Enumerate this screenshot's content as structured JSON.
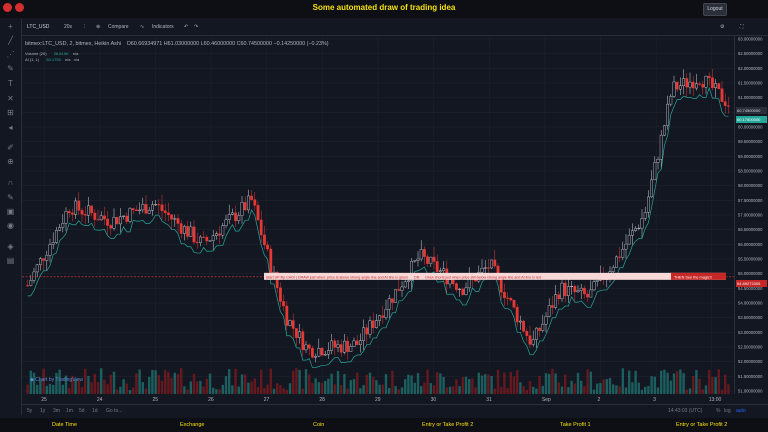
{
  "header": {
    "title": "Some automated draw of trading idea",
    "logout_label": "Logout"
  },
  "toolbar": {
    "symbol": "LTC_USD",
    "interval": "20s",
    "compare": "Compare",
    "indicators": "Indicators"
  },
  "legend": {
    "series": "bitmex:LTC_USD, 2, bitmex, Heikin Ashi",
    "ohlc": "O60.66934971  H61.03000000  L60.46000000  C60.74500000  −0.14250000 (−0.23%)",
    "volume": "Volume (20)",
    "volume_value": "26.819K",
    "volume_na": "n/a",
    "ai_label": "AI (1, 1)",
    "ai_value": "60.1750",
    "ai_na1": "n/a",
    "ai_na2": "n/a"
  },
  "chart_data": {
    "type": "candlestick",
    "x_labels": [
      "25",
      "24",
      "25",
      "26",
      "27",
      "28",
      "29",
      "30",
      "31",
      "Sep",
      "2",
      "3",
      "13:00"
    ],
    "y_ticks": [
      "63.00000000",
      "62.50000000",
      "62.00000000",
      "61.50000000",
      "61.00000000",
      "60.50000000",
      "60.00000000",
      "59.50000000",
      "59.00000000",
      "58.50000000",
      "58.00000000",
      "57.50000000",
      "57.00000000",
      "56.50000000",
      "56.00000000",
      "55.50000000",
      "55.00000000",
      "54.50000000",
      "54.00000000",
      "53.50000000",
      "53.00000000",
      "52.50000000",
      "52.00000000",
      "51.50000000",
      "51.00000000"
    ],
    "ylim": [
      50.9,
      63.1
    ],
    "current_price": "60.74500000",
    "ai_price": "60.17500000",
    "line_price": "54.89272305",
    "annotation_text": "Start UP flip CHOI  |  DRAW just when: price is above strong angle line and AI line is green       DN       Draw shorts just when price still below strong angle line and AI line is red",
    "annotation_tag": "THEN See the magic!!"
  },
  "watermark": "Chart by TradingView",
  "bottom": {
    "ranges": [
      "5y",
      "1y",
      "3m",
      "1m",
      "5d",
      "1d",
      "Go to..."
    ],
    "time": "14:43:03 (UTC)",
    "pct": "%",
    "log": "log",
    "auto": "auto"
  },
  "footer": [
    "Date Time",
    "Exchange",
    "Coin",
    "Entry or Take Profit 2",
    "Take Profit 1",
    "Entry or Take Profit 2"
  ],
  "colors": {
    "up": "#d1d4dc",
    "down": "#e53935",
    "ai": "#26a69a",
    "accent": "#f5e20b",
    "bg": "#131722"
  }
}
